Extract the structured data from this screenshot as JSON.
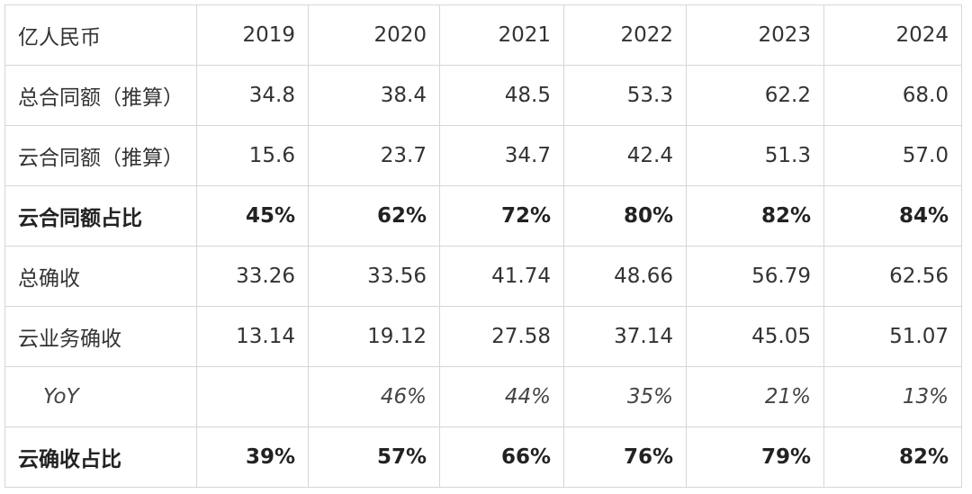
{
  "table": {
    "header": {
      "label": "亿人民币",
      "years": [
        "2019",
        "2020",
        "2021",
        "2022",
        "2023",
        "2024"
      ]
    },
    "rows": [
      {
        "label": "总合同额（推算）",
        "values": [
          "34.8",
          "38.4",
          "48.5",
          "53.3",
          "62.2",
          "68.0"
        ]
      },
      {
        "label": "云合同额（推算）",
        "values": [
          "15.6",
          "23.7",
          "34.7",
          "42.4",
          "51.3",
          "57.0"
        ]
      },
      {
        "label": "云合同额占比",
        "values": [
          "45%",
          "62%",
          "72%",
          "80%",
          "82%",
          "84%"
        ]
      },
      {
        "label": "总确收",
        "values": [
          "33.26",
          "33.56",
          "41.74",
          "48.66",
          "56.79",
          "62.56"
        ]
      },
      {
        "label": "云业务确收",
        "values": [
          "13.14",
          "19.12",
          "27.58",
          "37.14",
          "45.05",
          "51.07"
        ]
      },
      {
        "label": "YoY",
        "values": [
          "",
          "46%",
          "44%",
          "35%",
          "21%",
          "13%"
        ]
      },
      {
        "label": "云确收占比",
        "values": [
          "39%",
          "57%",
          "66%",
          "76%",
          "79%",
          "82%"
        ]
      }
    ]
  }
}
